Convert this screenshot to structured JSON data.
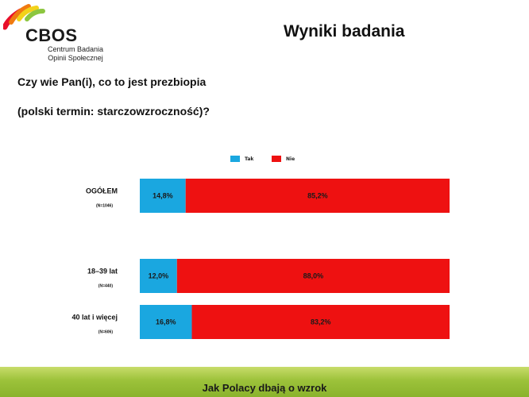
{
  "header": {
    "logo": {
      "name": "CBOS",
      "subtitle_line1": "Centrum Badania",
      "subtitle_line2": "Opinii Społecznej"
    },
    "title": "Wyniki badania"
  },
  "question": {
    "line1": "Czy wie Pan(i), co to jest prezbiopia",
    "line2": "(polski termin: starczowzroczność)?"
  },
  "colors": {
    "tak": "#1aa7e0",
    "nie": "#ee1111"
  },
  "chart_data": {
    "type": "bar",
    "orientation": "horizontal",
    "stacked": true,
    "percent": true,
    "categories": [
      "OGÓŁEM",
      "18–39 lat",
      "40 lat i więcej"
    ],
    "sample_sizes": [
      "(N=1046)",
      "(N=440)",
      "(N=606)"
    ],
    "series": [
      {
        "name": "Tak",
        "values": [
          14.8,
          12.0,
          16.8
        ],
        "labels": [
          "14,8%",
          "12,0%",
          "16,8%"
        ]
      },
      {
        "name": "Nie",
        "values": [
          85.2,
          88.0,
          83.2
        ],
        "labels": [
          "85,2%",
          "88,0%",
          "83,2%"
        ]
      }
    ],
    "xlim": [
      0,
      100
    ],
    "grid": false,
    "legend": "top"
  },
  "footer": {
    "text": "Jak Polacy dbają o wzrok"
  }
}
